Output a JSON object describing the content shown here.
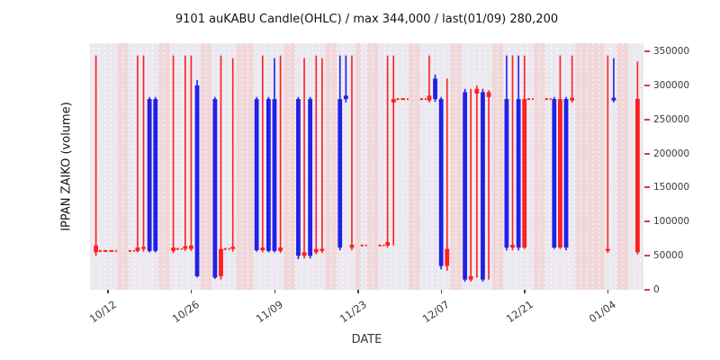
{
  "chart_data": {
    "type": "candlestick",
    "title": "9101 auKABU Candle(OHLC) / max 344,000 / last(01/09) 280,200",
    "xlabel": "DATE",
    "ylabel": "IPPAN ZAIKO (volume)",
    "ylim": [
      0,
      362000
    ],
    "yticks": [
      0,
      50000,
      100000,
      150000,
      200000,
      250000,
      300000,
      350000
    ],
    "xticks": [
      "10/12",
      "10/26",
      "11/09",
      "11/23",
      "12/07",
      "12/21",
      "01/04"
    ],
    "date_range": [
      "10/09",
      "01/10"
    ],
    "holidays": [
      "11/03",
      "11/23",
      "01/01",
      "01/02",
      "01/03"
    ],
    "colors": {
      "up": "#ff1f1f",
      "down": "#2121e6"
    },
    "grid": "white dashed vertical per day, weekend/holiday pink stripes",
    "legend": "none",
    "candles": [
      {
        "date": "10/10",
        "open": 55000,
        "high": 344000,
        "low": 50000,
        "close": 65000,
        "color": "up"
      },
      {
        "date": "10/11",
        "open": 57000,
        "high": 58000,
        "low": 56000,
        "close": 57000,
        "color": "up"
      },
      {
        "date": "10/12",
        "open": 57000,
        "high": 58000,
        "low": 56000,
        "close": 57000,
        "color": "up"
      },
      {
        "date": "10/13",
        "open": 57000,
        "high": 58000,
        "low": 56000,
        "close": 57000,
        "color": "up"
      },
      {
        "date": "10/16",
        "open": 57000,
        "high": 58000,
        "low": 56000,
        "close": 57000,
        "color": "up"
      },
      {
        "date": "10/17",
        "open": 57000,
        "high": 344000,
        "low": 55000,
        "close": 62000,
        "color": "up"
      },
      {
        "date": "10/18",
        "open": 60000,
        "high": 344000,
        "low": 56000,
        "close": 63000,
        "color": "up"
      },
      {
        "date": "10/19",
        "open": 280000,
        "high": 283000,
        "low": 55000,
        "close": 57000,
        "color": "down"
      },
      {
        "date": "10/20",
        "open": 280000,
        "high": 283000,
        "low": 55000,
        "close": 57000,
        "color": "down"
      },
      {
        "date": "10/23",
        "open": 57000,
        "high": 344000,
        "low": 54000,
        "close": 62000,
        "color": "up"
      },
      {
        "date": "10/24",
        "open": 60000,
        "high": 61000,
        "low": 59000,
        "close": 60000,
        "color": "up"
      },
      {
        "date": "10/25",
        "open": 60000,
        "high": 344000,
        "low": 57000,
        "close": 64000,
        "color": "up"
      },
      {
        "date": "10/26",
        "open": 60000,
        "high": 344000,
        "low": 57000,
        "close": 65000,
        "color": "up"
      },
      {
        "date": "10/27",
        "open": 300000,
        "high": 308000,
        "low": 18000,
        "close": 20000,
        "color": "down"
      },
      {
        "date": "10/30",
        "open": 280000,
        "high": 283000,
        "low": 16000,
        "close": 18000,
        "color": "down"
      },
      {
        "date": "10/31",
        "open": 20000,
        "high": 344000,
        "low": 15000,
        "close": 60000,
        "color": "up"
      },
      {
        "date": "11/01",
        "open": 60000,
        "high": 61000,
        "low": 59000,
        "close": 60000,
        "color": "up"
      },
      {
        "date": "11/02",
        "open": 60000,
        "high": 340000,
        "low": 56000,
        "close": 63000,
        "color": "up"
      },
      {
        "date": "11/06",
        "open": 280000,
        "high": 283000,
        "low": 56000,
        "close": 58000,
        "color": "down"
      },
      {
        "date": "11/07",
        "open": 58000,
        "high": 344000,
        "low": 55000,
        "close": 62000,
        "color": "up"
      },
      {
        "date": "11/08",
        "open": 280000,
        "high": 283000,
        "low": 55000,
        "close": 57000,
        "color": "down"
      },
      {
        "date": "11/09",
        "open": 280000,
        "high": 340000,
        "low": 55000,
        "close": 57000,
        "color": "down"
      },
      {
        "date": "11/10",
        "open": 57000,
        "high": 344000,
        "low": 54000,
        "close": 62000,
        "color": "up"
      },
      {
        "date": "11/13",
        "open": 280000,
        "high": 283000,
        "low": 45000,
        "close": 50000,
        "color": "down"
      },
      {
        "date": "11/14",
        "open": 50000,
        "high": 340000,
        "low": 46000,
        "close": 55000,
        "color": "up"
      },
      {
        "date": "11/15",
        "open": 280000,
        "high": 283000,
        "low": 46000,
        "close": 50000,
        "color": "down"
      },
      {
        "date": "11/16",
        "open": 55000,
        "high": 344000,
        "low": 52000,
        "close": 60000,
        "color": "up"
      },
      {
        "date": "11/17",
        "open": 57000,
        "high": 340000,
        "low": 54000,
        "close": 60000,
        "color": "up"
      },
      {
        "date": "11/20",
        "open": 280000,
        "high": 344000,
        "low": 58000,
        "close": 62000,
        "color": "down"
      },
      {
        "date": "11/21",
        "open": 285000,
        "high": 344000,
        "low": 275000,
        "close": 280000,
        "color": "down"
      },
      {
        "date": "11/22",
        "open": 62000,
        "high": 344000,
        "low": 58000,
        "close": 66000,
        "color": "up"
      },
      {
        "date": "11/24",
        "open": 65000,
        "high": 66000,
        "low": 64000,
        "close": 65000,
        "color": "up"
      },
      {
        "date": "11/27",
        "open": 65000,
        "high": 66000,
        "low": 64000,
        "close": 65000,
        "color": "up"
      },
      {
        "date": "11/28",
        "open": 65000,
        "high": 344000,
        "low": 62000,
        "close": 70000,
        "color": "up"
      },
      {
        "date": "11/29",
        "open": 275000,
        "high": 344000,
        "low": 65000,
        "close": 280000,
        "color": "up"
      },
      {
        "date": "11/30",
        "open": 280000,
        "high": 281000,
        "low": 279000,
        "close": 280000,
        "color": "up"
      },
      {
        "date": "12/01",
        "open": 280000,
        "high": 281000,
        "low": 279000,
        "close": 280000,
        "color": "up"
      },
      {
        "date": "12/04",
        "open": 280000,
        "high": 281000,
        "low": 279000,
        "close": 280000,
        "color": "up"
      },
      {
        "date": "12/05",
        "open": 278000,
        "high": 344000,
        "low": 275000,
        "close": 285000,
        "color": "up"
      },
      {
        "date": "12/06",
        "open": 310000,
        "high": 316000,
        "low": 276000,
        "close": 280000,
        "color": "down"
      },
      {
        "date": "12/07",
        "open": 280000,
        "high": 283000,
        "low": 30000,
        "close": 35000,
        "color": "down"
      },
      {
        "date": "12/08",
        "open": 35000,
        "high": 310000,
        "low": 28000,
        "close": 60000,
        "color": "up"
      },
      {
        "date": "12/11",
        "open": 290000,
        "high": 295000,
        "low": 12000,
        "close": 15000,
        "color": "down"
      },
      {
        "date": "12/12",
        "open": 15000,
        "high": 295000,
        "low": 12000,
        "close": 20000,
        "color": "up"
      },
      {
        "date": "12/13",
        "open": 288000,
        "high": 300000,
        "low": 18000,
        "close": 295000,
        "color": "up"
      },
      {
        "date": "12/14",
        "open": 290000,
        "high": 295000,
        "low": 12000,
        "close": 15000,
        "color": "down"
      },
      {
        "date": "12/15",
        "open": 283000,
        "high": 293000,
        "low": 15000,
        "close": 290000,
        "color": "up"
      },
      {
        "date": "12/18",
        "open": 280000,
        "high": 344000,
        "low": 58000,
        "close": 62000,
        "color": "down"
      },
      {
        "date": "12/19",
        "open": 62000,
        "high": 344000,
        "low": 58000,
        "close": 66000,
        "color": "up"
      },
      {
        "date": "12/20",
        "open": 280000,
        "high": 344000,
        "low": 58000,
        "close": 62000,
        "color": "down"
      },
      {
        "date": "12/21",
        "open": 62000,
        "high": 344000,
        "low": 60000,
        "close": 280000,
        "color": "up"
      },
      {
        "date": "12/22",
        "open": 280000,
        "high": 281000,
        "low": 279000,
        "close": 280000,
        "color": "up"
      },
      {
        "date": "12/25",
        "open": 280000,
        "high": 281000,
        "low": 279000,
        "close": 280000,
        "color": "up"
      },
      {
        "date": "12/26",
        "open": 280000,
        "high": 283000,
        "low": 60000,
        "close": 62000,
        "color": "down"
      },
      {
        "date": "12/27",
        "open": 62000,
        "high": 344000,
        "low": 60000,
        "close": 280000,
        "color": "up"
      },
      {
        "date": "12/28",
        "open": 280000,
        "high": 283000,
        "low": 58000,
        "close": 62000,
        "color": "down"
      },
      {
        "date": "12/29",
        "open": 278000,
        "high": 344000,
        "low": 275000,
        "close": 282000,
        "color": "up"
      },
      {
        "date": "01/04",
        "open": 57000,
        "high": 344000,
        "low": 54000,
        "close": 60000,
        "color": "up"
      },
      {
        "date": "01/05",
        "open": 282000,
        "high": 340000,
        "low": 275000,
        "close": 278000,
        "color": "down"
      },
      {
        "date": "01/09",
        "open": 55000,
        "high": 335000,
        "low": 52000,
        "close": 280200,
        "color": "up"
      }
    ]
  }
}
